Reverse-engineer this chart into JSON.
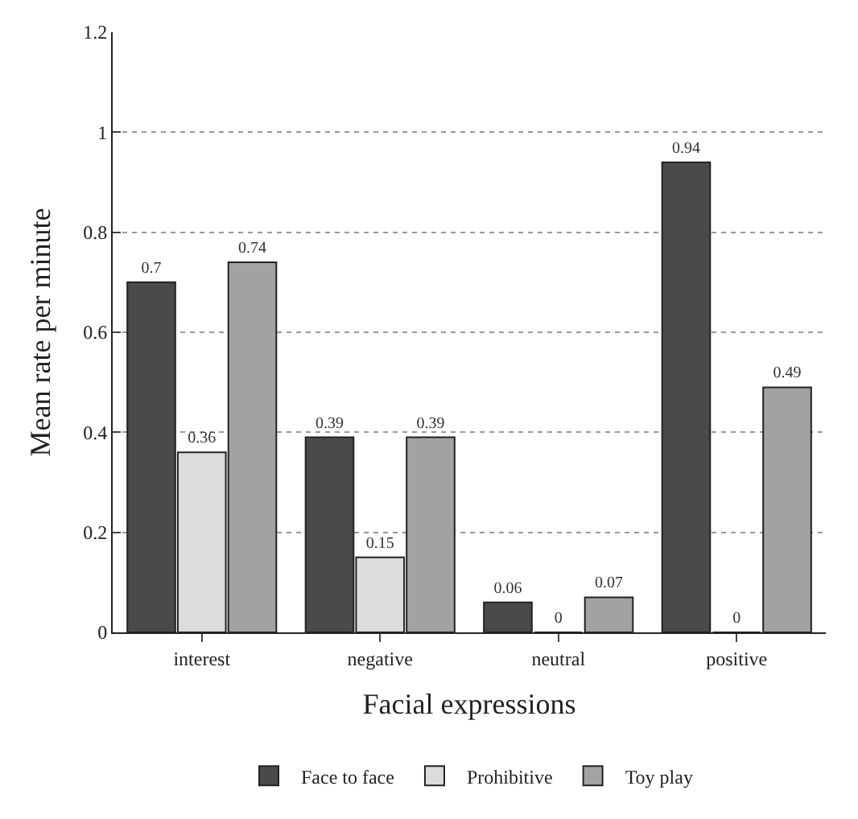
{
  "chart_data": {
    "type": "bar",
    "xlabel": "Facial expressions",
    "ylabel": "Mean rate per minute",
    "categories": [
      "interest",
      "negative",
      "neutral",
      "positive"
    ],
    "series": [
      {
        "name": "Face to face",
        "color": "#4a4a4a",
        "values": [
          0.7,
          0.39,
          0.06,
          0.94
        ]
      },
      {
        "name": "Prohibitive",
        "color": "#dcdcdc",
        "values": [
          0.36,
          0.15,
          0,
          0
        ]
      },
      {
        "name": "Toy play",
        "color": "#a2a2a2",
        "values": [
          0.74,
          0.39,
          0.07,
          0.49
        ]
      }
    ],
    "ylim": [
      0,
      1.2
    ],
    "yticks": [
      0,
      0.2,
      0.4,
      0.6,
      0.8,
      1,
      1.2
    ],
    "grid": "y",
    "legend": "bottom",
    "data_labels": true
  }
}
